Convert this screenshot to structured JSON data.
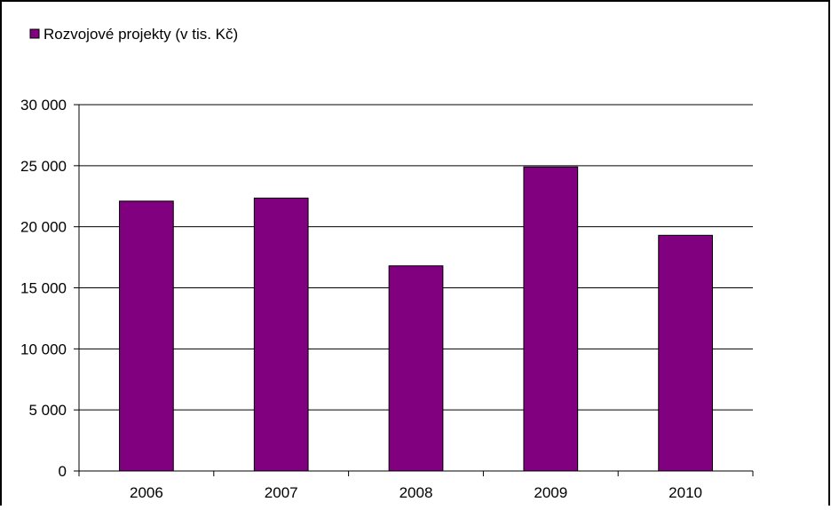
{
  "chart_data": {
    "type": "bar",
    "categories": [
      "2006",
      "2007",
      "2008",
      "2009",
      "2010"
    ],
    "series": [
      {
        "name": "Rozvojové projekty (v tis. Kč)",
        "values": [
          22100,
          22350,
          16800,
          24900,
          19300
        ]
      }
    ],
    "ylim": [
      0,
      30000
    ],
    "yticks": [
      0,
      5000,
      10000,
      15000,
      20000,
      25000,
      30000
    ],
    "ytick_labels": [
      "0",
      "5 000",
      "10 000",
      "15 000",
      "20 000",
      "25 000",
      "30 000"
    ],
    "grid": true,
    "legend_position": "top-left",
    "colors": {
      "bar": "#800080",
      "gridline": "#000000",
      "frame": "#000000"
    }
  }
}
